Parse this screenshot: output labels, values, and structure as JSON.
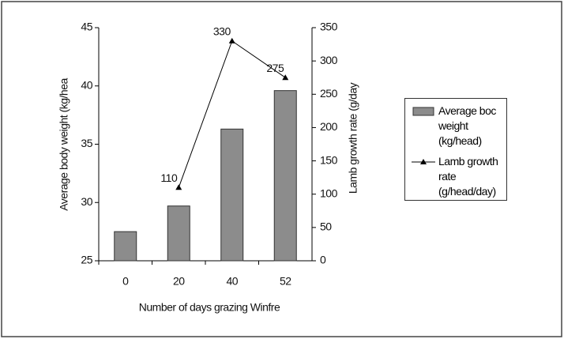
{
  "chart_data": {
    "type": "bar_line",
    "categories": [
      "0",
      "20",
      "40",
      "52"
    ],
    "series": [
      {
        "name": "Average boc weight (kg/head)",
        "type": "bar",
        "color": "#8c8c8c",
        "values": [
          27.5,
          29.7,
          36.3,
          39.6
        ]
      },
      {
        "name": "Lamb growth rate (g/head/day)",
        "type": "line",
        "axis": "y2",
        "color": "#000000",
        "values": [
          null,
          110,
          330,
          275
        ]
      }
    ],
    "x_label": "Number of days grazing Winfre",
    "y_label": "Average body weight (kg/hea",
    "y2_label": "Lamb growth rate (g/day",
    "ylim": [
      25,
      45
    ],
    "yticks": [
      25,
      30,
      35,
      40,
      45
    ],
    "y2lim": [
      0,
      350
    ],
    "y2ticks": [
      0,
      50,
      100,
      150,
      200,
      250,
      300,
      350
    ],
    "grid": false,
    "legend": "right"
  }
}
